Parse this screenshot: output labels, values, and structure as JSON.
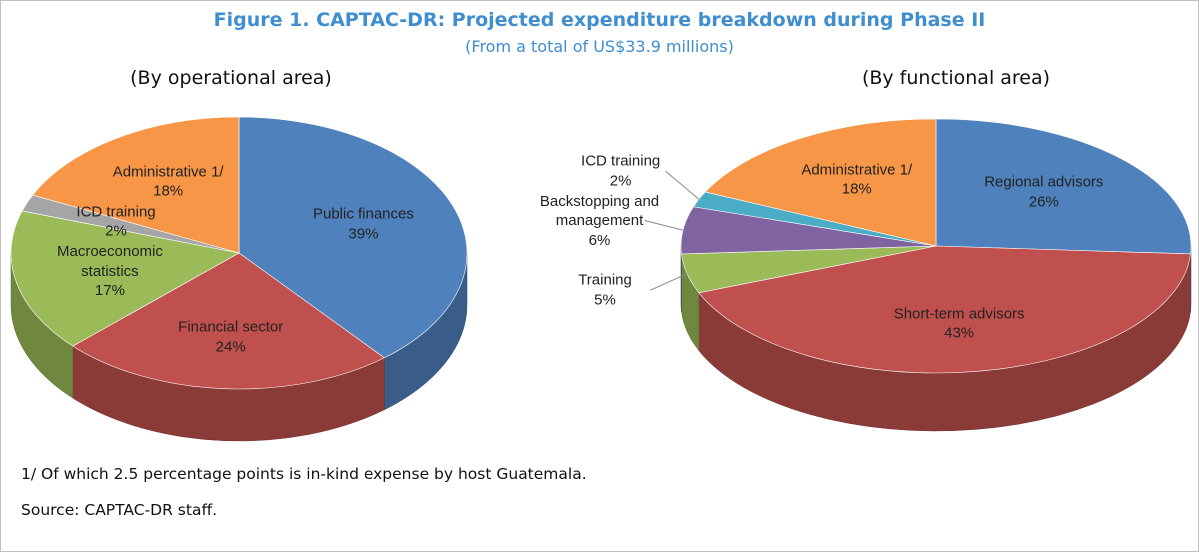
{
  "title": "Figure 1. CAPTAC-DR: Projected expenditure breakdown during Phase II",
  "subtitle": "(From a total of US$33.9 millions)",
  "notes": [
    "1/ Of which 2.5 percentage points is in-kind expense by host Guatemala.",
    "Source: CAPTAC-DR staff."
  ],
  "chart_data": [
    {
      "type": "pie",
      "title": "(By operational area)",
      "categories": [
        "Public finances",
        "Financial sector",
        "Macroeconomic statistics",
        "ICD training",
        "Administrative 1/"
      ],
      "values": [
        39,
        24,
        17,
        2,
        18
      ],
      "value_labels": [
        "39%",
        "24%",
        "17%",
        "2%",
        "18%"
      ],
      "colors": [
        "#4f81bd",
        "#c0504d",
        "#9bbb59",
        "#a5a5a5",
        "#f79646"
      ]
    },
    {
      "type": "pie",
      "title": "(By functional area)",
      "categories": [
        "Regional advisors",
        "Short-term advisors",
        "Training",
        "Backstopping and management",
        "ICD training",
        "Administrative 1/"
      ],
      "values": [
        26,
        43,
        5,
        6,
        2,
        18
      ],
      "value_labels": [
        "26%",
        "43%",
        "5%",
        "6%",
        "2%",
        "18%"
      ],
      "colors": [
        "#4f81bd",
        "#c0504d",
        "#9bbb59",
        "#8064a2",
        "#4bacc6",
        "#f79646"
      ]
    }
  ]
}
